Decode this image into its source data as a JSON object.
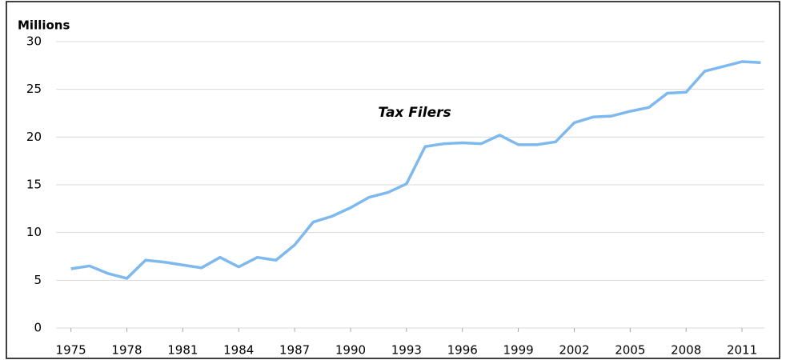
{
  "chart_data": {
    "type": "line",
    "title": "Tax Filers",
    "y_label": "Millions",
    "x": [
      1975,
      1976,
      1977,
      1978,
      1979,
      1980,
      1981,
      1982,
      1983,
      1984,
      1985,
      1986,
      1987,
      1988,
      1989,
      1990,
      1991,
      1992,
      1993,
      1994,
      1995,
      1996,
      1997,
      1998,
      1999,
      2000,
      2001,
      2002,
      2003,
      2004,
      2005,
      2006,
      2007,
      2008,
      2009,
      2010,
      2011,
      2012
    ],
    "series": [
      {
        "name": "Tax Filers",
        "color": "#7db8ef",
        "values": [
          6.2,
          6.5,
          5.7,
          5.2,
          7.1,
          6.9,
          6.6,
          6.3,
          7.4,
          6.4,
          7.4,
          7.1,
          8.7,
          11.1,
          11.7,
          12.6,
          13.7,
          14.2,
          15.1,
          19.0,
          19.3,
          19.4,
          19.3,
          20.2,
          19.2,
          19.2,
          19.5,
          21.5,
          22.1,
          22.2,
          22.7,
          23.1,
          24.6,
          24.7,
          26.9,
          27.4,
          27.9,
          27.8
        ]
      }
    ],
    "xlim": [
      1974.2,
      2012.2
    ],
    "xticks": [
      1975,
      1978,
      1981,
      1984,
      1987,
      1990,
      1993,
      1996,
      1999,
      2002,
      2005,
      2008,
      2011
    ],
    "ylim": [
      0,
      30
    ],
    "yticks": [
      0,
      5,
      10,
      15,
      20,
      25,
      30
    ],
    "grid": true
  }
}
